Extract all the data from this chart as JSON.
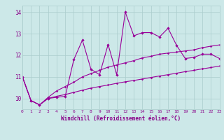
{
  "x": [
    0,
    1,
    2,
    3,
    4,
    5,
    6,
    7,
    8,
    9,
    10,
    11,
    12,
    13,
    14,
    15,
    16,
    17,
    18,
    19,
    20,
    21,
    22,
    23
  ],
  "y_main": [
    11.0,
    9.9,
    9.7,
    10.0,
    10.05,
    10.1,
    11.8,
    12.7,
    11.35,
    11.1,
    12.5,
    11.1,
    14.0,
    12.9,
    13.05,
    13.05,
    12.85,
    13.25,
    12.45,
    11.85,
    11.9,
    12.05,
    12.05,
    11.85
  ],
  "y_upper": [
    11.0,
    9.9,
    9.7,
    10.05,
    10.35,
    10.55,
    10.75,
    11.0,
    11.15,
    11.3,
    11.45,
    11.55,
    11.65,
    11.75,
    11.88,
    11.95,
    12.05,
    12.1,
    12.15,
    12.2,
    12.25,
    12.35,
    12.42,
    12.48
  ],
  "y_lower": [
    11.0,
    9.9,
    9.7,
    10.0,
    10.1,
    10.18,
    10.28,
    10.38,
    10.48,
    10.55,
    10.62,
    10.7,
    10.77,
    10.83,
    10.9,
    10.97,
    11.04,
    11.1,
    11.17,
    11.24,
    11.3,
    11.37,
    11.43,
    11.5
  ],
  "xlim": [
    0,
    23
  ],
  "ylim": [
    9.5,
    14.3
  ],
  "yticks": [
    10,
    11,
    12,
    13,
    14
  ],
  "xticks": [
    0,
    1,
    2,
    3,
    4,
    5,
    6,
    7,
    8,
    9,
    10,
    11,
    12,
    13,
    14,
    15,
    16,
    17,
    18,
    19,
    20,
    21,
    22,
    23
  ],
  "xlabel": "Windchill (Refroidissement éolien,°C)",
  "line_color": "#990099",
  "bg_color": "#cce8e8",
  "grid_color": "#aacccc",
  "tick_color": "#880088",
  "label_color": "#880088",
  "title_color": "#880088"
}
